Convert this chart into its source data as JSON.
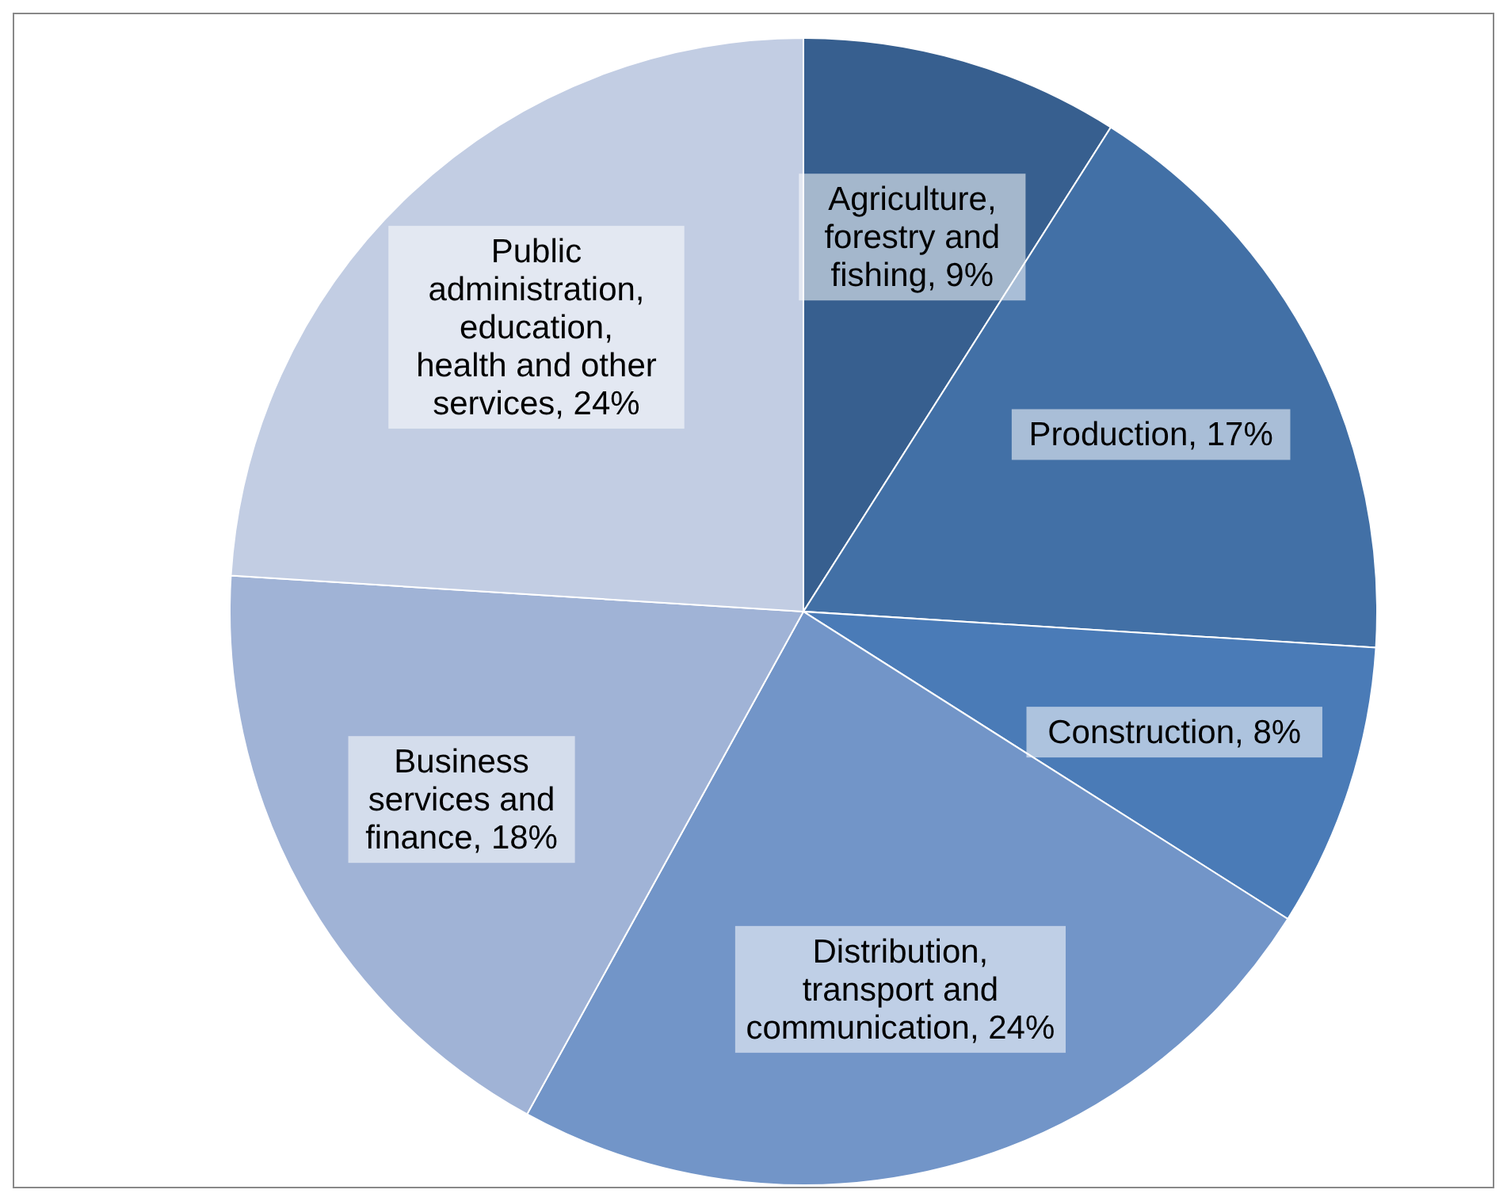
{
  "chart_data": {
    "type": "pie",
    "categories": [
      "Agriculture, forestry and fishing",
      "Production",
      "Construction",
      "Distribution, transport and communication",
      "Business services and finance",
      "Public administration, education, health and other services"
    ],
    "values": [
      9,
      17,
      8,
      24,
      18,
      24
    ],
    "value_labels": [
      "9%",
      "17%",
      "8%",
      "24%",
      "18%",
      "24%"
    ],
    "colors": [
      "#375f8f",
      "#4270a6",
      "#4a7bb7",
      "#7295c8",
      "#a0b3d6",
      "#c2cde3"
    ],
    "legend": false
  }
}
